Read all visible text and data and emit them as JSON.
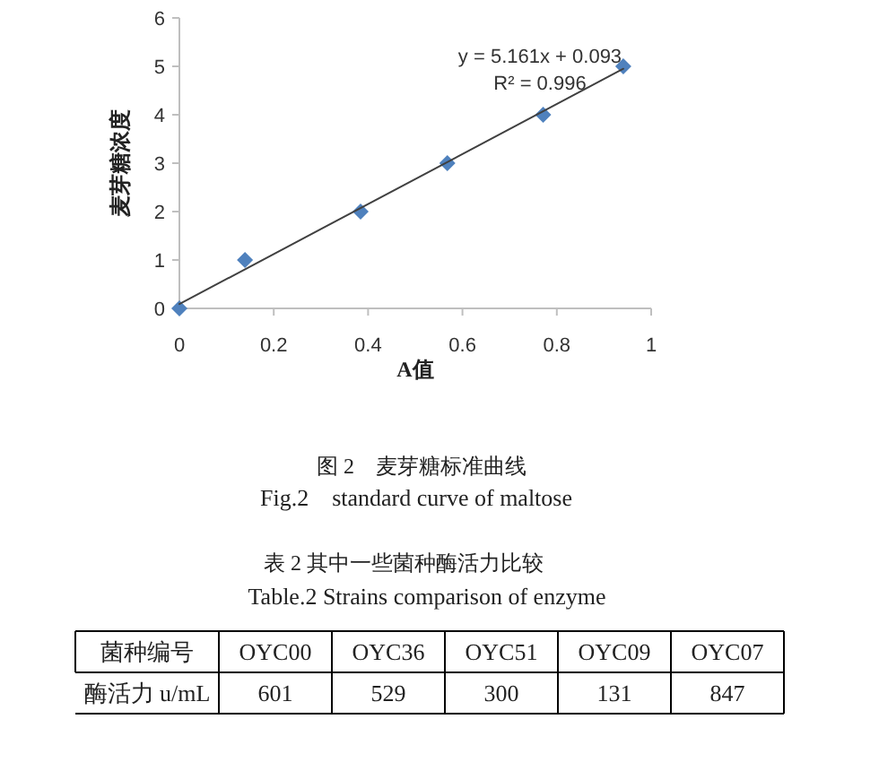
{
  "chart_data": [
    {
      "type": "scatter",
      "title": "图 2　麦芽糖标准曲线",
      "subtitle": "Fig.2　standard curve of maltose",
      "xlabel": "A值",
      "ylabel": "麦芽糖浓度",
      "series": [
        {
          "type": "scatter",
          "marker": "diamond",
          "color": "#4f81bd",
          "x": [
            0,
            0.139,
            0.384,
            0.568,
            0.771,
            0.941
          ],
          "values": [
            0,
            1,
            2,
            3,
            4,
            5
          ]
        },
        {
          "type": "line",
          "marker": "none",
          "color": "#404040",
          "x": [
            0,
            0.941
          ],
          "values": [
            0.09,
            4.95
          ]
        }
      ],
      "xlim": [
        0,
        1
      ],
      "xticks": [
        0,
        0.2,
        0.4,
        0.6,
        0.8,
        1
      ],
      "ylim": [
        0,
        6
      ],
      "yticks": [
        0,
        1,
        2,
        3,
        4,
        5,
        6
      ],
      "annotations": [
        "y = 5.161x + 0.093",
        "R² = 0.996"
      ]
    },
    {
      "type": "other",
      "title": "表 2 其中一些菌种酶活力比较",
      "subtitle": "Table.2 Strains comparison of enzyme",
      "categories": [
        "OYC00",
        "OYC36",
        "OYC51",
        "OYC09",
        "OYC07"
      ],
      "values": [
        601,
        529,
        300,
        131,
        847
      ],
      "data_labels": true,
      "annotations": [
        "菌种编号",
        "酶活力 u/mL"
      ]
    }
  ]
}
